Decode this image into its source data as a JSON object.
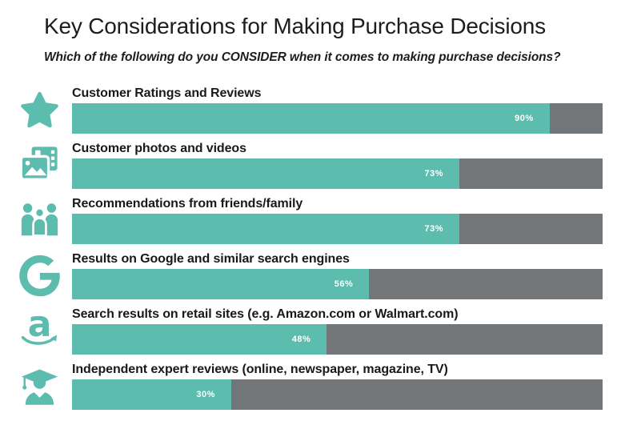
{
  "title": "Key Considerations for Making Purchase Decisions",
  "subtitle": "Which of the following do you CONSIDER when it comes to making purchase decisions?",
  "colors": {
    "accent": "#5CBCAE",
    "track": "#737678",
    "heading": "#1D1D1B",
    "value_text": "#FFFFFF"
  },
  "chart_data": {
    "type": "bar",
    "orientation": "horizontal",
    "title": "Key Considerations for Making Purchase Decisions",
    "subtitle": "Which of the following do you CONSIDER when it comes to making purchase decisions?",
    "unit": "%",
    "xlim": [
      0,
      100
    ],
    "grid": false,
    "legend": false,
    "bar_color": "#5CBCAE",
    "track_color": "#737678",
    "categories": [
      "Customer Ratings and Reviews",
      "Customer photos and videos",
      "Recommendations from friends/family",
      "Results on Google and similar search engines",
      "Search results on retail sites (e.g. Amazon.com or Walmart.com)",
      "Independent expert reviews (online, newspaper, magazine, TV)"
    ],
    "values": [
      90,
      73,
      73,
      56,
      48,
      30
    ],
    "value_labels": [
      "90%",
      "73%",
      "73%",
      "56%",
      "48%",
      "30%"
    ],
    "icons": [
      "star-icon",
      "customer-photos-videos-icon",
      "friends-family-icon",
      "google-icon",
      "amazon-icon",
      "graduate-expert-icon"
    ]
  }
}
